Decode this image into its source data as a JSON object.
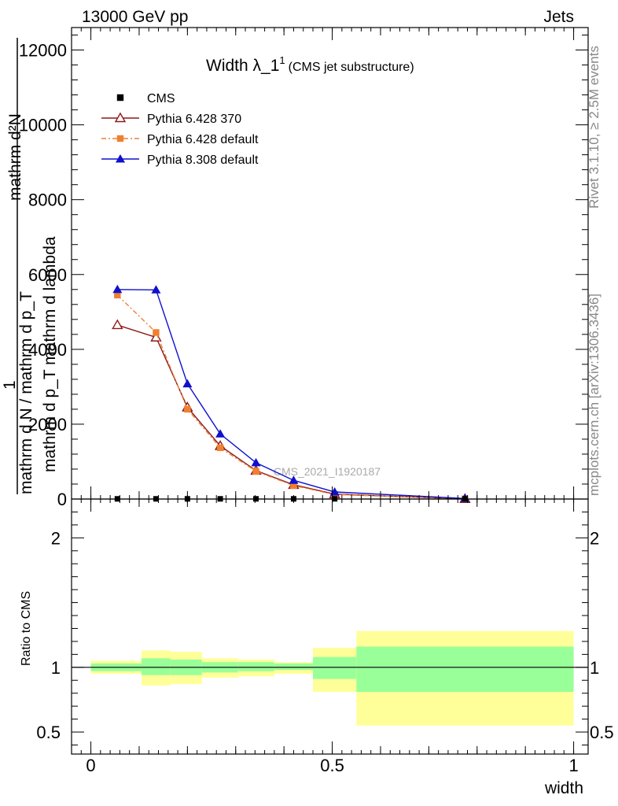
{
  "header": {
    "left": "13000 GeV pp",
    "right": "Jets",
    "title_main": "Width λ_1",
    "title_sup": "1",
    "title_sub": "(CMS jet substructure)"
  },
  "side_labels": {
    "rivet": "Rivet 3.1.10, ≥ 2.5M events",
    "mcplots": "mcplots.cern.ch [arXiv:1306.3436]"
  },
  "watermark": "CMS_2021_I1920187",
  "ylabel_top": {
    "numerator": "mathrm d²N",
    "denominator": "mathrm d p_T mathrm d lambda",
    "one": "1",
    "left_den": "mathrm d N / mathrm d p_T"
  },
  "ratio_ylabel": "Ratio to CMS",
  "xlabel": "width",
  "legend": [
    {
      "key": "cms",
      "label": "CMS",
      "color": "#000000",
      "marker": "square-filled"
    },
    {
      "key": "p6_370",
      "label": "Pythia 6.428 370",
      "color": "#8b1a1a",
      "marker": "triangle-open"
    },
    {
      "key": "p6_def",
      "label": "Pythia 6.428 default",
      "color": "#f08030",
      "marker": "square-filled"
    },
    {
      "key": "p8_def",
      "label": "Pythia 8.308 default",
      "color": "#1010cc",
      "marker": "triangle-filled"
    }
  ],
  "chart_data": [
    {
      "type": "line",
      "panel": "main",
      "xlim": [
        -0.04,
        1.03
      ],
      "ylim": [
        0,
        12600
      ],
      "yticks": [
        0,
        2000,
        4000,
        6000,
        8000,
        10000,
        12000
      ],
      "ytick_labels": [
        "0",
        "2000",
        "4000",
        "6000",
        "8000",
        "10000",
        "12000"
      ],
      "series": [
        {
          "name": "CMS",
          "x": [
            0.055,
            0.135,
            0.2,
            0.268,
            0.342,
            0.42,
            0.505,
            0.775
          ],
          "y": [
            5,
            5,
            5,
            5,
            5,
            5,
            5,
            5
          ],
          "color": "#000000"
        },
        {
          "name": "Pythia 6.428 370",
          "x": [
            0.055,
            0.135,
            0.2,
            0.268,
            0.342,
            0.42,
            0.505,
            0.775
          ],
          "y": [
            4650,
            4320,
            2450,
            1420,
            760,
            380,
            130,
            5
          ],
          "color": "#8b1a1a"
        },
        {
          "name": "Pythia 6.428 default",
          "x": [
            0.055,
            0.135,
            0.2,
            0.268,
            0.342,
            0.42,
            0.505,
            0.775
          ],
          "y": [
            5450,
            4450,
            2400,
            1370,
            740,
            360,
            120,
            5
          ],
          "color": "#f08030"
        },
        {
          "name": "Pythia 8.308 default",
          "x": [
            0.055,
            0.135,
            0.2,
            0.268,
            0.342,
            0.42,
            0.505,
            0.775
          ],
          "y": [
            5600,
            5590,
            3080,
            1740,
            970,
            500,
            190,
            15
          ],
          "color": "#1010cc"
        }
      ]
    },
    {
      "type": "area",
      "panel": "ratio",
      "xlim": [
        -0.04,
        1.03
      ],
      "ylim": [
        0.33,
        2.3
      ],
      "yticks": [
        0.5,
        1,
        2
      ],
      "ytick_labels": [
        "0.5",
        "1",
        "2"
      ],
      "xticks": [
        0,
        0.5,
        1
      ],
      "xtick_labels": [
        "0",
        "0.5",
        "1"
      ],
      "bands": [
        {
          "x0": 0.0,
          "x1": 0.105,
          "stat_lo": 0.97,
          "stat_hi": 1.03,
          "tot_lo": 0.95,
          "tot_hi": 1.05
        },
        {
          "x0": 0.105,
          "x1": 0.165,
          "stat_lo": 0.94,
          "stat_hi": 1.07,
          "tot_lo": 0.86,
          "tot_hi": 1.13
        },
        {
          "x0": 0.165,
          "x1": 0.23,
          "stat_lo": 0.94,
          "stat_hi": 1.06,
          "tot_lo": 0.87,
          "tot_hi": 1.12
        },
        {
          "x0": 0.23,
          "x1": 0.305,
          "stat_lo": 0.96,
          "stat_hi": 1.04,
          "tot_lo": 0.92,
          "tot_hi": 1.07
        },
        {
          "x0": 0.305,
          "x1": 0.38,
          "stat_lo": 0.97,
          "stat_hi": 1.04,
          "tot_lo": 0.93,
          "tot_hi": 1.06
        },
        {
          "x0": 0.38,
          "x1": 0.46,
          "stat_lo": 0.98,
          "stat_hi": 1.03,
          "tot_lo": 0.95,
          "tot_hi": 1.04
        },
        {
          "x0": 0.46,
          "x1": 0.55,
          "stat_lo": 0.91,
          "stat_hi": 1.08,
          "tot_lo": 0.81,
          "tot_hi": 1.15
        },
        {
          "x0": 0.55,
          "x1": 1.0,
          "stat_lo": 0.81,
          "stat_hi": 1.16,
          "tot_lo": 0.55,
          "tot_hi": 1.28
        }
      ]
    }
  ]
}
